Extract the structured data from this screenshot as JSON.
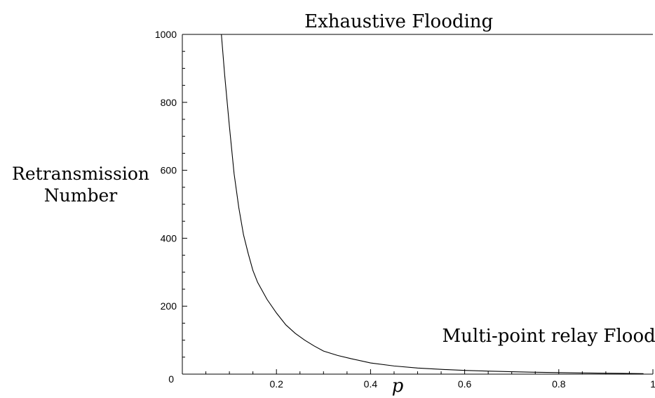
{
  "chart_data": {
    "type": "line",
    "title": "",
    "xlabel": "p",
    "ylabel_lines": [
      "Retransmission",
      "Number"
    ],
    "xlim": [
      0,
      1
    ],
    "ylim": [
      0,
      1000
    ],
    "x_ticks": [
      {
        "value": 0,
        "label": "0"
      },
      {
        "value": 0.2,
        "label": "0.2"
      },
      {
        "value": 0.4,
        "label": "0.4"
      },
      {
        "value": 0.6,
        "label": "0.6"
      },
      {
        "value": 0.8,
        "label": "0.8"
      },
      {
        "value": 1,
        "label": "1"
      }
    ],
    "y_ticks": [
      {
        "value": 200,
        "label": "200"
      },
      {
        "value": 400,
        "label": "400"
      },
      {
        "value": 600,
        "label": "600"
      },
      {
        "value": 800,
        "label": "800"
      },
      {
        "value": 1000,
        "label": "1000"
      }
    ],
    "grid": false,
    "legend": "none",
    "series": [
      {
        "label": "Exhaustive Flooding",
        "label_anchor": {
          "x": 0.46,
          "y": 1000
        },
        "x": [
          0,
          1
        ],
        "y": [
          1000,
          1000
        ]
      },
      {
        "label": "Multi-point relay Flooding",
        "label_anchor": {
          "x": 0.81,
          "y": 70
        },
        "x": [
          0.083,
          0.09,
          0.1,
          0.11,
          0.12,
          0.13,
          0.14,
          0.15,
          0.16,
          0.18,
          0.2,
          0.22,
          0.24,
          0.26,
          0.28,
          0.3,
          0.33,
          0.36,
          0.4,
          0.45,
          0.5,
          0.55,
          0.6,
          0.65,
          0.7,
          0.75,
          0.8,
          0.85,
          0.9,
          0.95,
          0.98
        ],
        "y": [
          1000,
          880,
          730,
          590,
          490,
          410,
          355,
          305,
          270,
          220,
          180,
          145,
          120,
          100,
          83,
          68,
          55,
          45,
          33,
          24,
          18,
          14,
          11,
          9,
          7,
          5.5,
          4.5,
          3.5,
          2.8,
          2,
          1.5
        ]
      }
    ]
  }
}
